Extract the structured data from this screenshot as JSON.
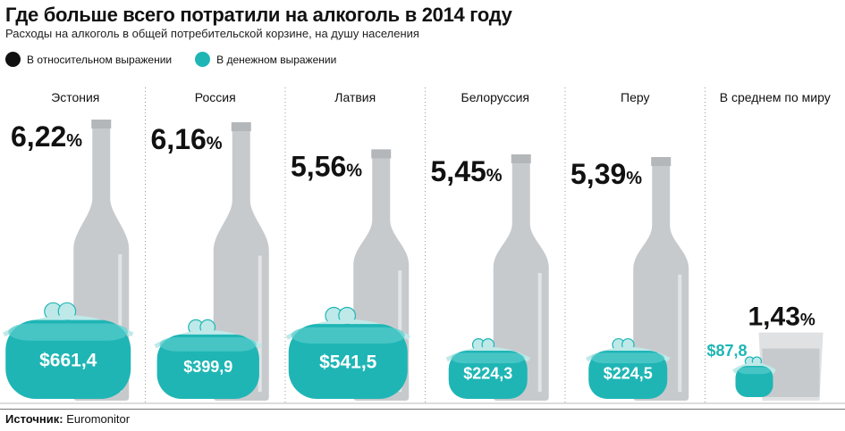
{
  "title": "Где больше всего потратили на алкоголь в 2014 году",
  "subtitle": "Расходы на алкоголь в общей потребительской корзине, на душу населения",
  "legend": {
    "relative": "В относительном выражении",
    "money": "В денежном выражении"
  },
  "source": {
    "label": "Источник:",
    "value": "Euromonitor"
  },
  "colors": {
    "relative": "#111111",
    "money": "#1fb5b5",
    "bottle": "#c7cacd"
  },
  "chart_data": {
    "type": "bar",
    "title": "Где больше всего потратили на алкоголь в 2014 году",
    "subtitle": "Расходы на алкоголь в общей потребительской корзине, на душу населения",
    "categories": [
      "Эстония",
      "Россия",
      "Латвия",
      "Белоруссия",
      "Перу",
      "В среднем по миру"
    ],
    "series": [
      {
        "name": "В относительном выражении",
        "unit": "%",
        "values": [
          6.22,
          6.16,
          5.56,
          5.45,
          5.39,
          1.43
        ],
        "labels": [
          "6,22",
          "6,16",
          "5,56",
          "5,45",
          "5,39",
          "1,43"
        ]
      },
      {
        "name": "В денежном выражении",
        "unit": "$",
        "values": [
          661.4,
          399.9,
          541.5,
          224.3,
          224.5,
          87.8
        ],
        "labels": [
          "$661,4",
          "$399,9",
          "$541,5",
          "$224,3",
          "$224,5",
          "$87,8"
        ]
      }
    ],
    "percent_sign": "%",
    "grid": false
  }
}
